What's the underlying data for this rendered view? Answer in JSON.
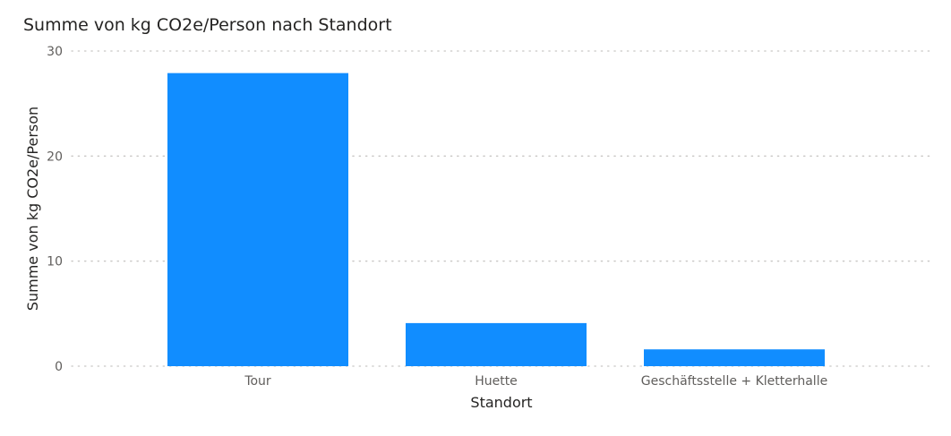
{
  "chart_data": {
    "type": "bar",
    "title": "Summe von kg CO2e/Person nach Standort",
    "xlabel": "Standort",
    "ylabel": "Summe von kg CO2e/Person",
    "categories": [
      "Tour",
      "Huette",
      "Geschäftsstelle + Kletterhalle"
    ],
    "series": [
      {
        "name": "Summe von kg CO2e/Person",
        "values": [
          27.9,
          4.1,
          1.6
        ]
      }
    ],
    "ylim": [
      0,
      30
    ],
    "yticks": [
      0,
      10,
      20,
      30
    ],
    "grid": true,
    "legend": "none",
    "colors": {
      "bar": "#118DFF",
      "grid": "#C8C6C4",
      "tick_text": "#605E5C",
      "title_text": "#252423"
    }
  }
}
